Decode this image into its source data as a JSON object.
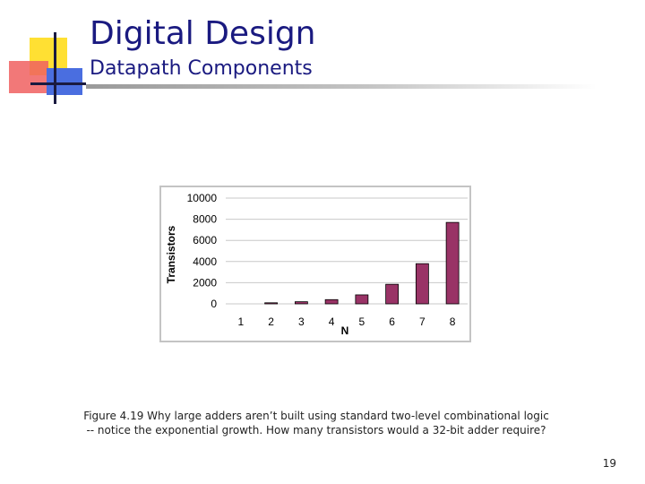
{
  "slide": {
    "title": "Digital Design",
    "subtitle": "Datapath Components",
    "caption": "Figure 4.19 Why large adders aren’t built using standard two-level combinational logic -- notice the exponential growth. How many transistors would a 32-bit adder require?",
    "page_number": "19"
  },
  "logo_colors": {
    "yellow": "#ffe033",
    "red": "#f06060",
    "blue": "#4a6ee0",
    "line": "#1a1a40"
  },
  "chart_data": {
    "type": "bar",
    "categories": [
      "1",
      "2",
      "3",
      "4",
      "5",
      "6",
      "7",
      "8"
    ],
    "values": [
      0,
      100,
      200,
      400,
      850,
      1850,
      3800,
      7700
    ],
    "xlabel": "N",
    "ylabel": "Transistors",
    "ylim": [
      0,
      10000
    ],
    "yticks": [
      "10000",
      "8000",
      "6000",
      "4000",
      "2000",
      "0"
    ],
    "bar_color": "#993366",
    "grid": true
  }
}
